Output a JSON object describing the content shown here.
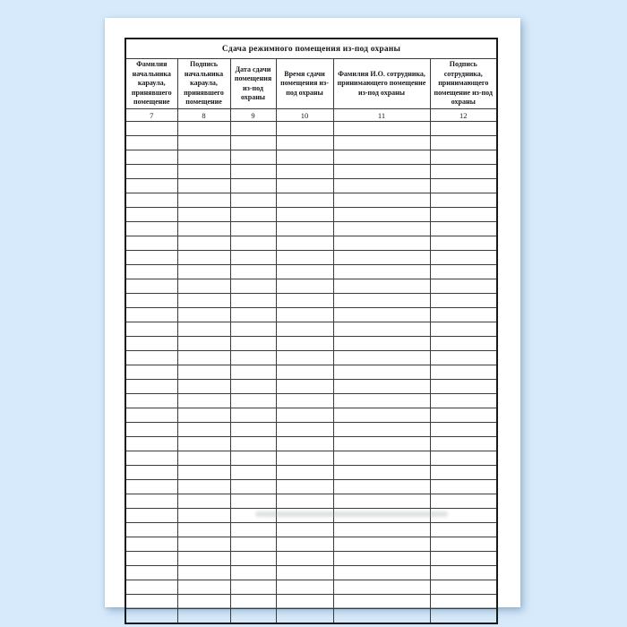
{
  "window": {
    "background_color": "#d6eafb"
  },
  "page": {
    "background_color": "#ffffff",
    "border_color": "#1a1a1a",
    "text_color": "#17171c"
  },
  "table": {
    "title": "Сдача режимного помещения из-под охраны",
    "columns": [
      {
        "header": "Фамилия начальника караула, принявшего помещение",
        "number": "7"
      },
      {
        "header": "Подпись начальника караула, принявшего помещение",
        "number": "8"
      },
      {
        "header": "Дата сдачи помещения из-под охраны",
        "number": "9"
      },
      {
        "header": "Время сдачи помещения из-под охраны",
        "number": "10"
      },
      {
        "header": "Фамилия И.О. сотрудника, принимающего помещение из-под охраны",
        "number": "11"
      },
      {
        "header": "Подпись сотрудника, принимающего помещение из-под охраны",
        "number": "12"
      }
    ],
    "empty_row_count": 35
  }
}
